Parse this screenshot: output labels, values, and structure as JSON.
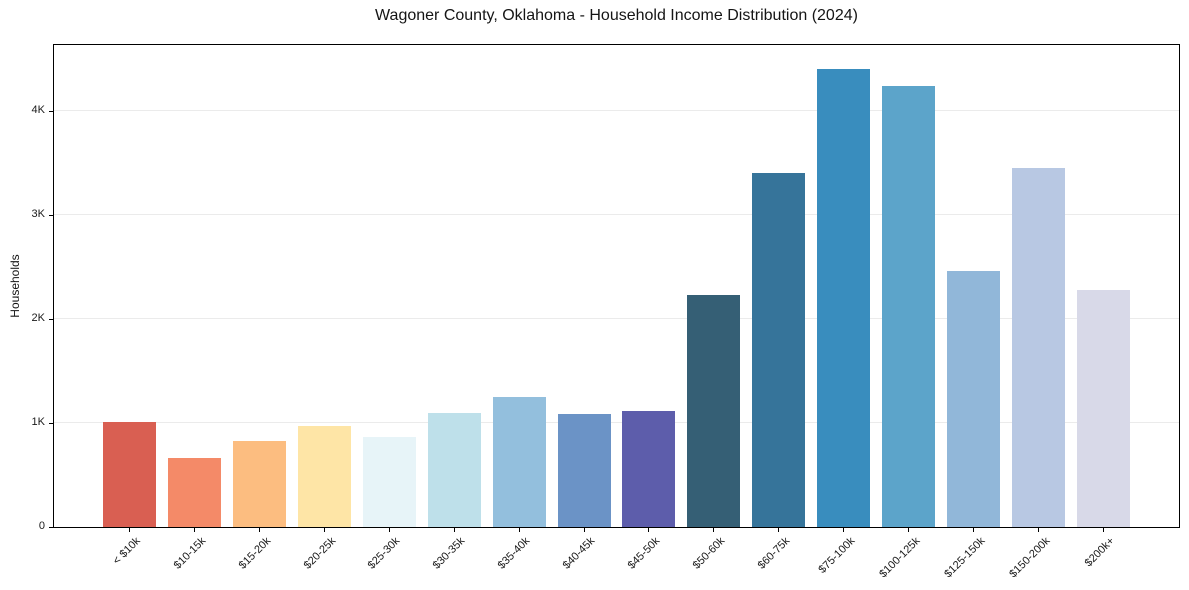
{
  "chart_data": {
    "type": "bar",
    "title": "Wagoner County, Oklahoma - Household Income Distribution (2024)",
    "xlabel": "",
    "ylabel": "Households",
    "categories": [
      "< $10k",
      "$10-15k",
      "$15-20k",
      "$20-25k",
      "$25-30k",
      "$30-35k",
      "$35-40k",
      "$40-45k",
      "$45-50k",
      "$50-60k",
      "$60-75k",
      "$75-100k",
      "$100-125k",
      "$125-150k",
      "$150-200k",
      "$200k+"
    ],
    "values": [
      1010,
      665,
      830,
      970,
      865,
      1100,
      1250,
      1090,
      1115,
      2230,
      3410,
      4405,
      4245,
      2460,
      3455,
      2285
    ],
    "bar_colors": [
      "#d95f52",
      "#f48a68",
      "#fcbd80",
      "#fee5a6",
      "#e7f4f8",
      "#bee0ea",
      "#93bfdd",
      "#6b93c6",
      "#5d5dab",
      "#355f75",
      "#36749a",
      "#398dbe",
      "#5ca4ca",
      "#91b7d9",
      "#b8c8e3",
      "#d8d9e8"
    ],
    "ylim": [
      0,
      4640
    ],
    "yticks": [
      {
        "value": 0,
        "label": "0"
      },
      {
        "value": 1000,
        "label": "1K"
      },
      {
        "value": 2000,
        "label": "2K"
      },
      {
        "value": 3000,
        "label": "3K"
      },
      {
        "value": 4000,
        "label": "4K"
      }
    ],
    "grid": "horizontal",
    "legend_position": "none"
  },
  "style": {
    "background": "#ffffff",
    "spine_color": "#000000",
    "grid_color": "#ebebeb",
    "text_color": "#1a1a1a"
  }
}
